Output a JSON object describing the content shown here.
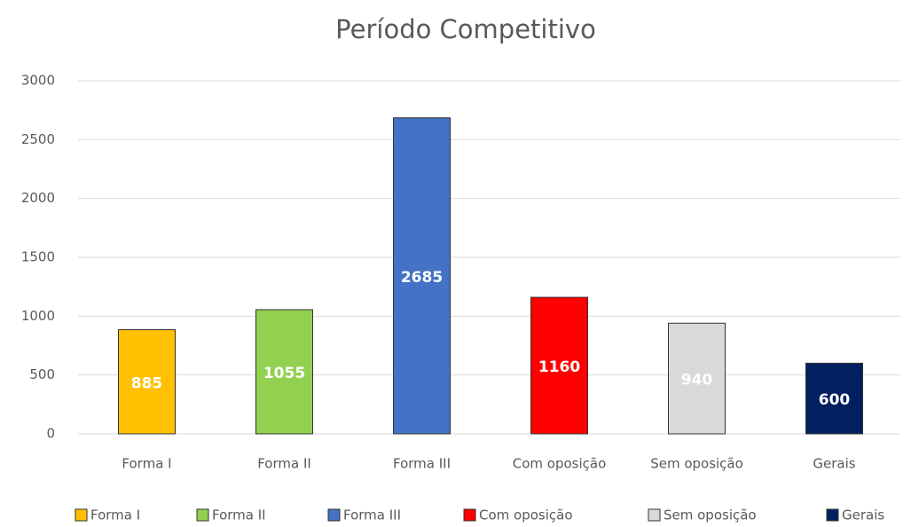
{
  "chart_data": {
    "type": "bar",
    "title": "Período Competitivo",
    "categories": [
      "Forma I",
      "Forma II",
      "Forma III",
      "Com oposição",
      "Sem oposição",
      "Gerais"
    ],
    "values": [
      885,
      1055,
      2685,
      1160,
      940,
      600
    ],
    "colors": [
      "#ffc000",
      "#92d050",
      "#4472c4",
      "#ff0000",
      "#d9d9d9",
      "#002060"
    ],
    "ylim": [
      0,
      3000
    ],
    "yticks": [
      0,
      500,
      1000,
      1500,
      2000,
      2500,
      3000
    ],
    "grid": true,
    "legend": "bottom"
  }
}
